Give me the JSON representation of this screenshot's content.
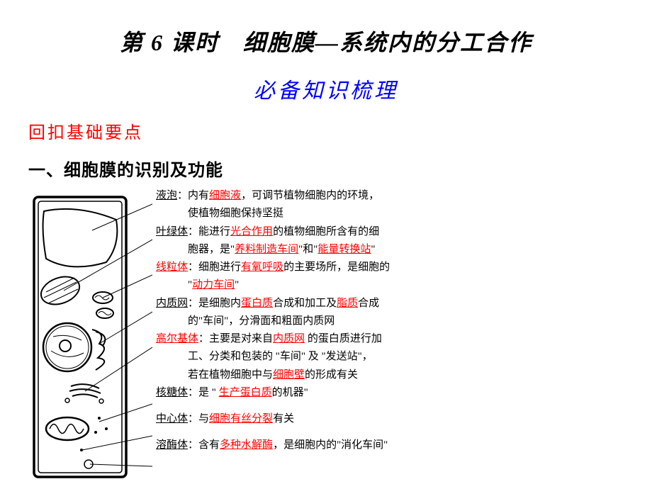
{
  "title": "第 6 课时　细胞膜—系统内的分工合作",
  "subtitle": "必备知识梳理",
  "section_label": "回扣基础要点",
  "heading": "一、细胞膜的识别及功能",
  "items": [
    {
      "label": "液泡",
      "sep": "：",
      "t1": "内有",
      "r1": "细胞液",
      "t2": "，可调节植物细胞内的环境，",
      "cont": [
        "使植物细胞保持坚挺"
      ]
    },
    {
      "label": "叶绿体",
      "sep": "：",
      "t1": "能进行",
      "r1": "光合作用",
      "t2": "的植物细胞所含有的细",
      "cont_parts": [
        {
          "t1": "胞器，是\"",
          "r1": "养料制造车间",
          "t2": "\"和\"",
          "r2": "能量转换站",
          "t3": "\""
        }
      ]
    },
    {
      "label_red": "线粒体",
      "sep": "：",
      "t1": "细胞进行",
      "r1": "有氧呼吸",
      "t2": "的主要场所，是细胞的",
      "cont_parts": [
        {
          "t1": "\"",
          "r1": "动力车间",
          "t2": "\""
        }
      ]
    },
    {
      "label": "内质网",
      "sep": "：",
      "t1": "是细胞内",
      "r1": "蛋白质",
      "t2": "合成和加工及",
      "r2": "脂质",
      "t3": "合成",
      "cont": [
        "的\"车间\"，分滑面和粗面内质网"
      ]
    },
    {
      "label_red": "高尔基体",
      "sep": "：",
      "t1": "主要是对来自",
      "r1": "内质网",
      "t2": " 的蛋白质进行加",
      "cont_parts": [
        {
          "t1": "工、分类和包装的 \"车间\" 及 \"发送站\"，"
        },
        {
          "t1": "若在植物细胞中与",
          "r1": "细胞壁",
          "t2": "的形成有关"
        }
      ]
    },
    {
      "label": "核糖体",
      "sep": "：",
      "t1": "是 \" ",
      "r1": "生产蛋白质",
      "t2": "的机器\""
    },
    {
      "label": "中心体",
      "sep": "：",
      "t1": "与",
      "r1": "细胞有丝分裂",
      "t2": "有关"
    },
    {
      "label": "溶酶体",
      "sep": "：",
      "t1": "含有",
      "r1": "多种水解酶",
      "t2": "，是细胞内的\"消化车间\""
    }
  ],
  "style": {
    "title_fontsize": 32,
    "subtitle_fontsize": 30,
    "subtitle_color": "#0000ff",
    "section_color": "#ff0000",
    "body_fontsize": 15,
    "red_color": "#ff0000",
    "background": "#ffffff"
  }
}
